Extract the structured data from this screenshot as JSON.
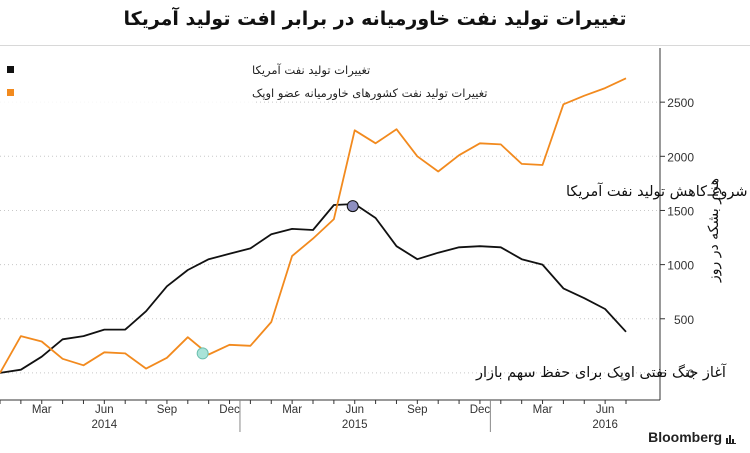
{
  "title": "تغییرات تولید نفت خاورمیانه در برابر افت تولید آمریکا",
  "brand": "Bloomberg",
  "colors": {
    "us": "#111111",
    "opec": "#f28a1e",
    "grid": "#c8c8c8",
    "axis": "#333333"
  },
  "chart_data": {
    "type": "line",
    "title": "تغییرات تولید نفت خاورمیانه در برابر افت تولید آمریکا",
    "ylabel": "هزار بشکه در روز",
    "ylim": [
      -250,
      3000
    ],
    "yticks": [
      0,
      500,
      1000,
      1500,
      2000,
      2500
    ],
    "x": [
      "2014-01",
      "2014-02",
      "2014-03",
      "2014-04",
      "2014-05",
      "2014-06",
      "2014-07",
      "2014-08",
      "2014-09",
      "2014-10",
      "2014-11",
      "2014-12",
      "2015-01",
      "2015-02",
      "2015-03",
      "2015-04",
      "2015-05",
      "2015-06",
      "2015-07",
      "2015-08",
      "2015-09",
      "2015-10",
      "2015-11",
      "2015-12",
      "2016-01",
      "2016-02",
      "2016-03",
      "2016-04",
      "2016-05",
      "2016-06",
      "2016-07"
    ],
    "x_ticks": [
      {
        "label": "Mar",
        "month": "2014-03"
      },
      {
        "label": "Jun",
        "month": "2014-06"
      },
      {
        "label": "Sep",
        "month": "2014-09"
      },
      {
        "label": "Dec",
        "month": "2014-12"
      },
      {
        "label": "Mar",
        "month": "2015-03"
      },
      {
        "label": "Jun",
        "month": "2015-06"
      },
      {
        "label": "Sep",
        "month": "2015-09"
      },
      {
        "label": "Dec",
        "month": "2015-12"
      },
      {
        "label": "Mar",
        "month": "2016-03"
      },
      {
        "label": "Jun",
        "month": "2016-06"
      }
    ],
    "years": [
      {
        "label": "2014",
        "month": "2014-06"
      },
      {
        "label": "2015",
        "month": "2015-06"
      },
      {
        "label": "2016",
        "month": "2016-06"
      }
    ],
    "year_separators": [
      "2014-12",
      "2015-12"
    ],
    "series": [
      {
        "name": "تغییرات تولید نفت آمریکا",
        "color": "#111111",
        "values": [
          0,
          30,
          150,
          310,
          340,
          400,
          400,
          570,
          800,
          950,
          1050,
          1100,
          1150,
          1280,
          1330,
          1320,
          1550,
          1560,
          1430,
          1170,
          1050,
          1110,
          1160,
          1170,
          1160,
          1050,
          1000,
          780,
          690,
          590,
          380
        ]
      },
      {
        "name": "تغییرات تولید نفت کشورهای خاورمیانه عضو اوپک",
        "color": "#f28a1e",
        "values": [
          0,
          340,
          290,
          130,
          70,
          190,
          180,
          40,
          140,
          330,
          170,
          260,
          250,
          470,
          1080,
          1240,
          1420,
          2240,
          2120,
          2250,
          2000,
          1860,
          2010,
          2120,
          2110,
          1930,
          1920,
          2480,
          2560,
          2630,
          2720
        ]
      }
    ],
    "legend_position": "top-left",
    "grid": "horizontal-dotted",
    "annotations": [
      {
        "text": "شروع کاهش تولید نفت آمریکا",
        "month": "2015-06",
        "value": 1540,
        "series": 0
      },
      {
        "text": "آغاز جنگ نفتی اوپک برای حفظ سهم بازار",
        "month": "2014-11",
        "value": 180,
        "series": 1
      }
    ]
  }
}
